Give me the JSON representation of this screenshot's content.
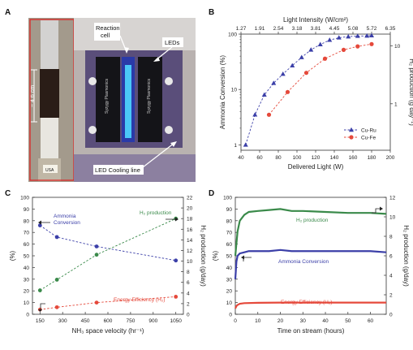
{
  "panels": {
    "A": "A",
    "B": "B",
    "C": "C",
    "D": "D"
  },
  "photo": {
    "scale_label": "~ 4.6 cm",
    "reaction_cell": "Reaction\ncell",
    "leds": "LEDs",
    "led_cooling": "LED Cooling line",
    "led_left_text": "Syzygy Plasmonics",
    "led_right_text": "Syzygy Plasmonics",
    "tube_label": "USA"
  },
  "chart_data": [
    {
      "id": "B",
      "type": "line",
      "xlabel": "Delivered Light (W)",
      "top_xlabel": "Light Intensity (W/cm²)",
      "top_ticks": [
        "1.27",
        "1.91",
        "2.54",
        "3.18",
        "3.81",
        "4.45",
        "5.08",
        "5.72",
        "6.35"
      ],
      "ylabel": "Ammonia Conversion (%)",
      "y2label": "H₂ production (g day⁻¹)",
      "xlim": [
        40,
        200
      ],
      "ylog": true,
      "ylim": [
        0.8,
        100
      ],
      "y2ticks": [
        "1",
        "10"
      ],
      "series": [
        {
          "name": "Cu-Ru",
          "color": "#3b3fa8",
          "marker": "triangle",
          "x": [
            45,
            55,
            65,
            75,
            85,
            95,
            105,
            115,
            125,
            135,
            145,
            155,
            165,
            175,
            180
          ],
          "y": [
            1.0,
            3.5,
            8.0,
            13,
            19,
            27,
            38,
            52,
            65,
            78,
            86,
            90,
            92,
            93,
            94
          ]
        },
        {
          "name": "Cu-Fe",
          "color": "#e5493b",
          "marker": "circle",
          "x": [
            70,
            90,
            110,
            130,
            150,
            165,
            180
          ],
          "y": [
            3.5,
            9,
            20,
            36,
            52,
            60,
            66
          ]
        }
      ]
    },
    {
      "id": "C",
      "type": "line",
      "xlabel": "NH₃ space velocity (hr⁻¹)",
      "ylabel": "(%)",
      "y2label": "H₂ production (g/day)",
      "xticks": [
        150,
        300,
        450,
        600,
        750,
        900,
        1050
      ],
      "yticks": [
        0,
        10,
        20,
        30,
        40,
        50,
        60,
        70,
        80,
        90,
        100
      ],
      "y2ticks": [
        0,
        2,
        4,
        6,
        8,
        10,
        12,
        14,
        16,
        18,
        20,
        22
      ],
      "annotations": [
        "Ammonia\nConversion",
        "H₂ production",
        "Energy Efficiency (H₂)"
      ],
      "series": [
        {
          "name": "Ammonia Conversion",
          "color": "#3b3fa8",
          "axis": "left",
          "x": [
            150,
            262,
            525,
            1050
          ],
          "y": [
            76,
            66,
            58,
            46
          ]
        },
        {
          "name": "H₂ production",
          "color": "#3a8a4a",
          "axis": "right",
          "x": [
            150,
            262,
            525,
            1050
          ],
          "y": [
            4.5,
            6.5,
            11.2,
            18
          ]
        },
        {
          "name": "Energy Efficiency (H₂)",
          "color": "#e5493b",
          "axis": "left",
          "x": [
            150,
            262,
            525,
            1050
          ],
          "y": [
            4,
            6,
            10,
            15
          ]
        }
      ]
    },
    {
      "id": "D",
      "type": "line",
      "xlabel": "Time on stream (hours)",
      "ylabel": "(%)",
      "y2label": "H₂ production (g/day)",
      "xticks": [
        0,
        10,
        20,
        30,
        40,
        50,
        60
      ],
      "yticks": [
        0,
        10,
        20,
        30,
        40,
        50,
        60,
        70,
        80,
        90,
        100
      ],
      "y2ticks": [
        0,
        2,
        4,
        6,
        8,
        10,
        12
      ],
      "annotations": [
        "H₂ production",
        "Ammonia Conversion",
        "Energy Efficiency (H₂)"
      ],
      "series": [
        {
          "name": "H₂ production",
          "color": "#3a8a4a",
          "axis": "right",
          "x": [
            0,
            1,
            2,
            4,
            6,
            10,
            15,
            20,
            25,
            30,
            40,
            50,
            60,
            67
          ],
          "y": [
            6.0,
            8.5,
            9.6,
            10.2,
            10.5,
            10.6,
            10.7,
            10.8,
            10.6,
            10.6,
            10.5,
            10.4,
            10.4,
            10.3
          ]
        },
        {
          "name": "Ammonia Conversion",
          "color": "#3b3fa8",
          "axis": "left",
          "x": [
            0,
            0.5,
            1,
            2,
            4,
            6,
            10,
            15,
            20,
            25,
            30,
            40,
            50,
            60,
            67
          ],
          "y": [
            30,
            45,
            50,
            52,
            53,
            54,
            54,
            54,
            55,
            54,
            54,
            54,
            54,
            54,
            53
          ]
        },
        {
          "name": "Energy Efficiency (H₂)",
          "color": "#e5493b",
          "axis": "left",
          "x": [
            0,
            0.5,
            1,
            2,
            4,
            10,
            20,
            30,
            40,
            50,
            60,
            67
          ],
          "y": [
            5,
            7,
            8,
            9,
            9.5,
            9.8,
            10,
            10,
            10,
            10,
            10,
            10
          ]
        }
      ]
    }
  ]
}
